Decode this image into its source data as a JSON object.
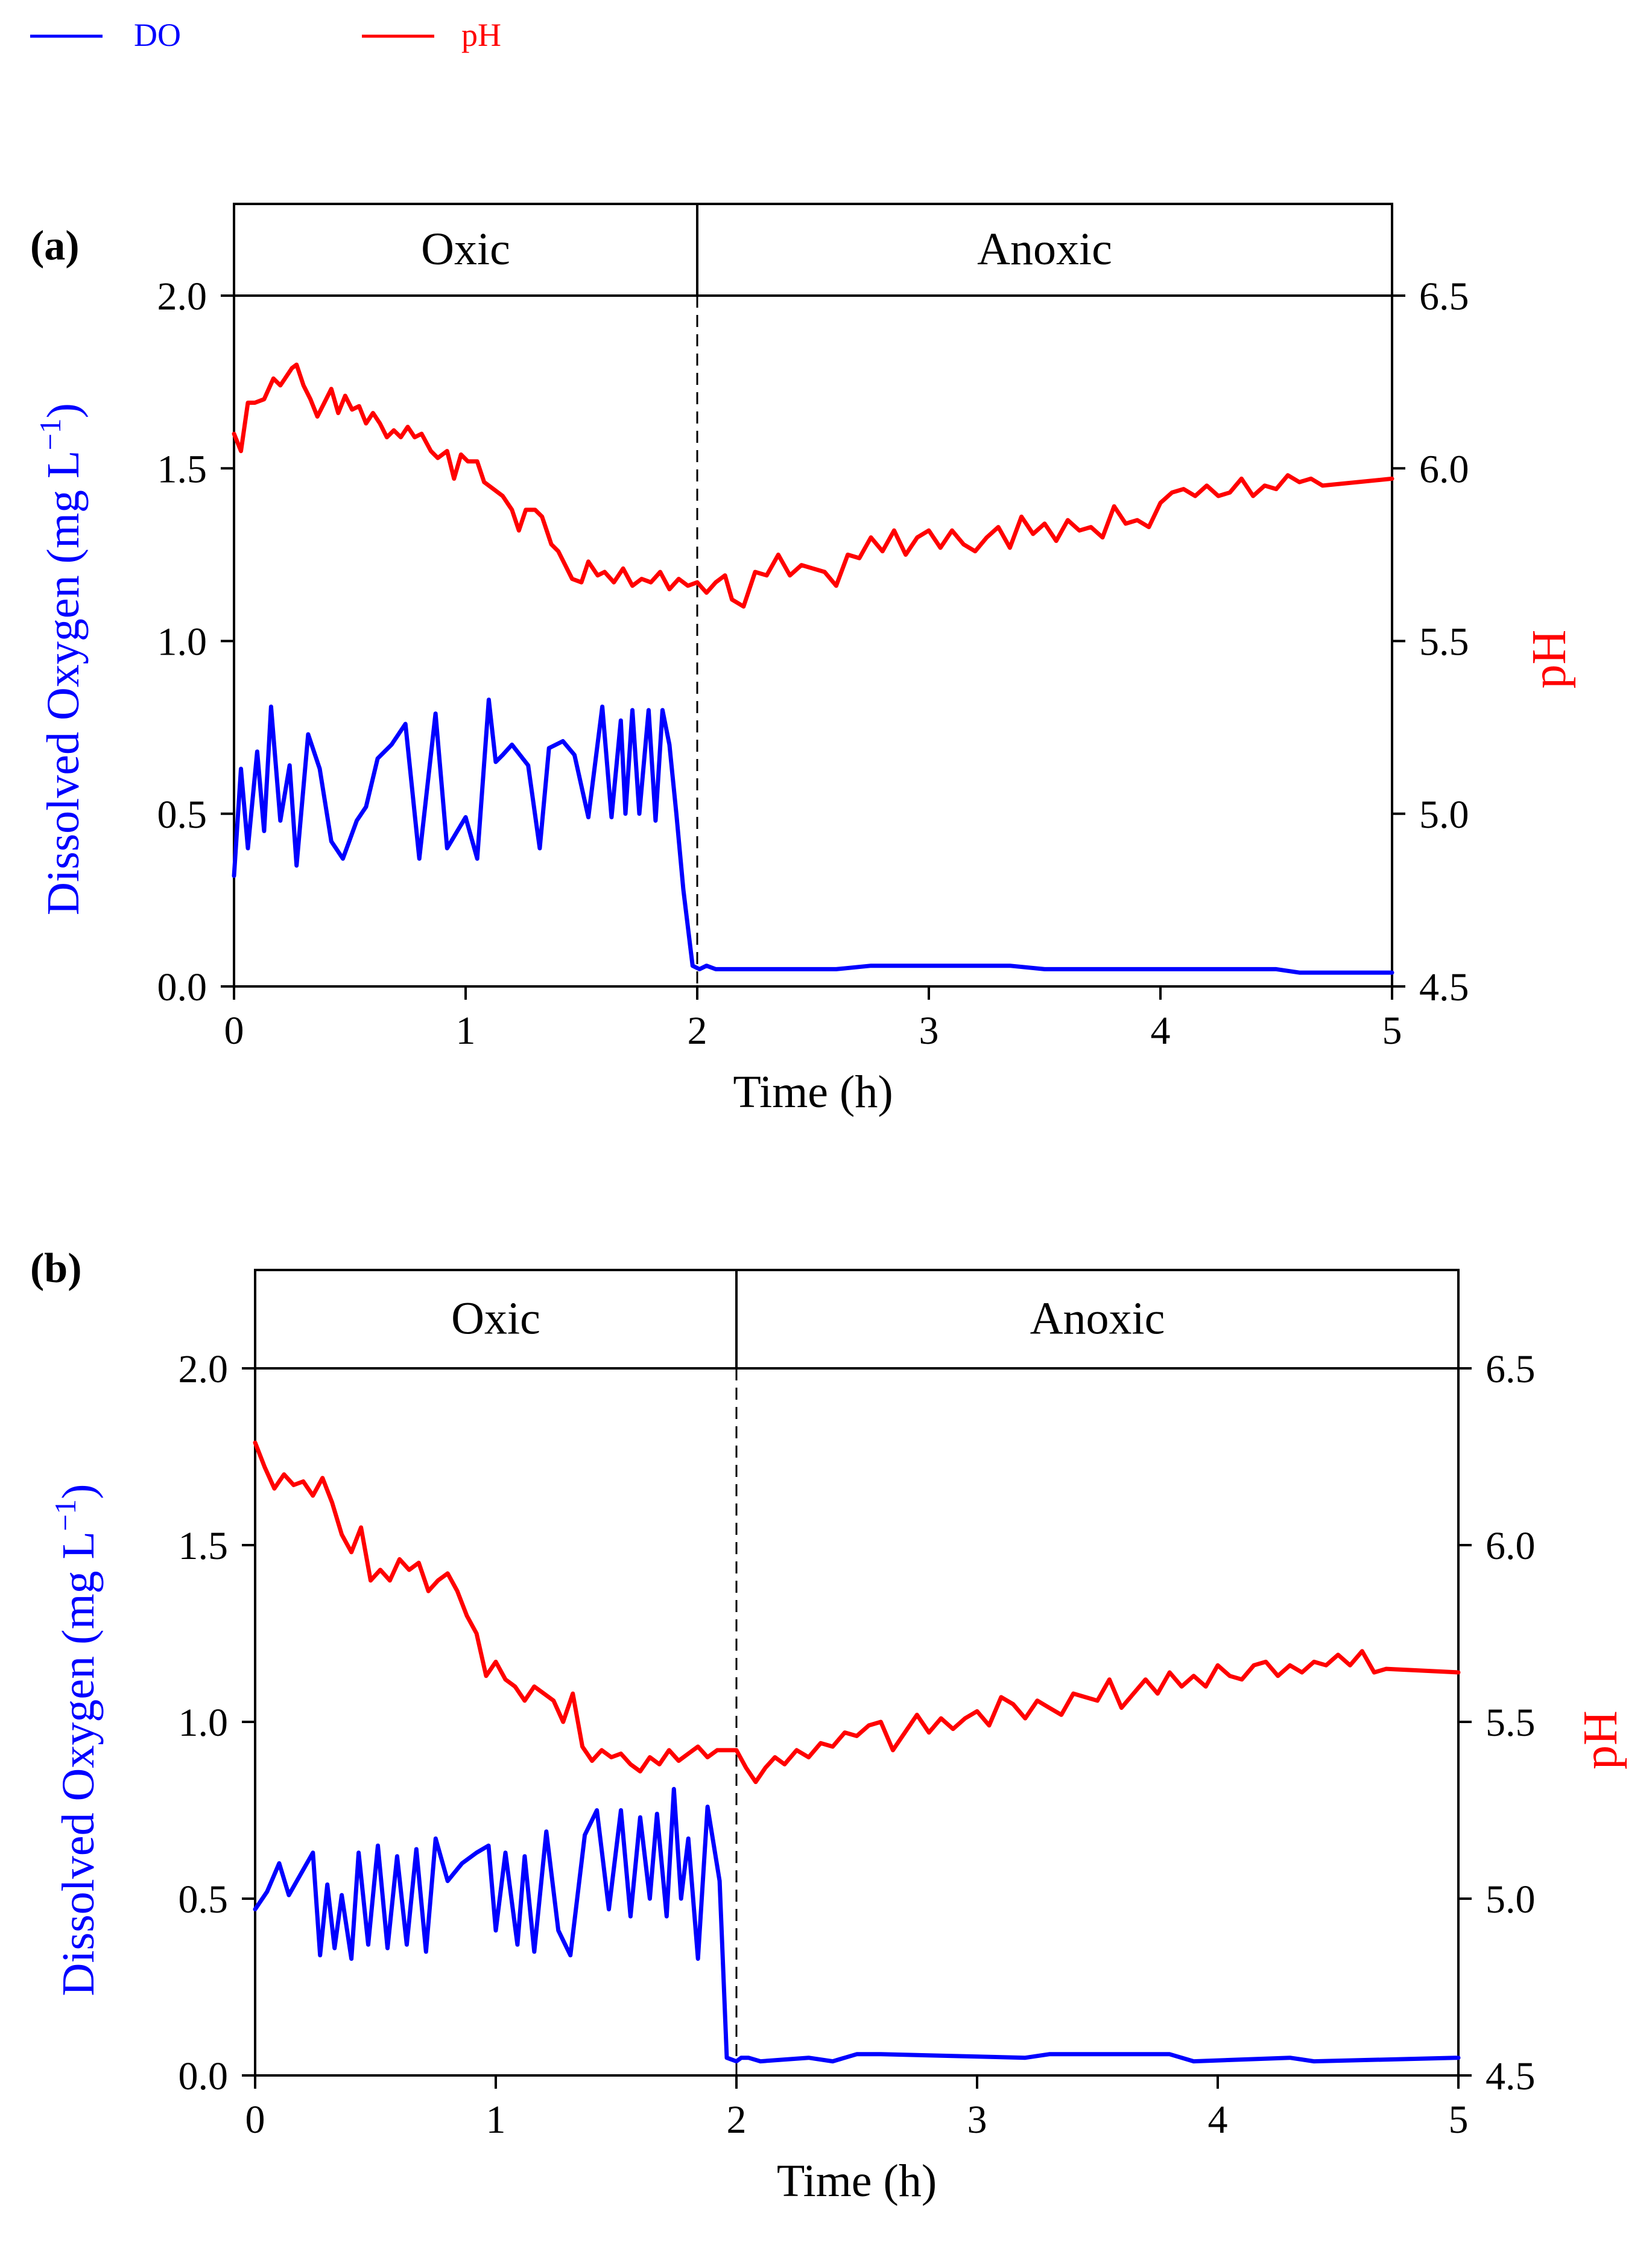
{
  "legend": {
    "items": [
      {
        "name": "DO",
        "color": "#0000ff"
      },
      {
        "name": "pH",
        "color": "#ff0000"
      }
    ]
  },
  "colors": {
    "do": "#0000ff",
    "ph": "#ff0000",
    "axis": "#000000"
  },
  "chart_data": [
    {
      "type": "line",
      "panel_label": "(a)",
      "phase_labels": [
        "Oxic",
        "Anoxic"
      ],
      "phase_boundary": 2,
      "xlabel": "Time (h)",
      "ylabel": "Dissolved Oxygen (mg L",
      "ylabel_sup": "−1",
      "ylabel_close": ")",
      "y2label": "pH",
      "xlim": [
        0,
        5
      ],
      "ylim": [
        0,
        2
      ],
      "y2lim": [
        4.5,
        6.5
      ],
      "xticks": [
        "0",
        "1",
        "2",
        "3",
        "4",
        "5"
      ],
      "yticks": [
        "0.0",
        "0.5",
        "1.0",
        "1.5",
        "2.0"
      ],
      "y2ticks": [
        "4.5",
        "5.0",
        "5.5",
        "6.0",
        "6.5"
      ],
      "series": [
        {
          "name": "DO",
          "axis": "left",
          "x": [
            0,
            0.03,
            0.06,
            0.1,
            0.13,
            0.16,
            0.2,
            0.24,
            0.27,
            0.32,
            0.37,
            0.42,
            0.47,
            0.53,
            0.57,
            0.62,
            0.68,
            0.74,
            0.8,
            0.83,
            0.87,
            0.92,
            1.0,
            1.05,
            1.1,
            1.13,
            1.16,
            1.2,
            1.27,
            1.32,
            1.36,
            1.42,
            1.47,
            1.53,
            1.59,
            1.63,
            1.67,
            1.69,
            1.72,
            1.75,
            1.79,
            1.82,
            1.85,
            1.88,
            1.91,
            1.94,
            1.98,
            2.01,
            2.04,
            2.08,
            2.15,
            2.6,
            2.75,
            3.35,
            3.5,
            4.5,
            4.6,
            5.0
          ],
          "values": [
            0.32,
            0.63,
            0.4,
            0.68,
            0.45,
            0.81,
            0.48,
            0.64,
            0.35,
            0.73,
            0.63,
            0.42,
            0.37,
            0.48,
            0.52,
            0.66,
            0.7,
            0.76,
            0.37,
            0.55,
            0.79,
            0.4,
            0.49,
            0.37,
            0.83,
            0.65,
            0.67,
            0.7,
            0.64,
            0.4,
            0.69,
            0.71,
            0.67,
            0.49,
            0.81,
            0.49,
            0.77,
            0.5,
            0.8,
            0.5,
            0.8,
            0.48,
            0.8,
            0.7,
            0.5,
            0.28,
            0.06,
            0.05,
            0.06,
            0.05,
            0.05,
            0.05,
            0.06,
            0.06,
            0.05,
            0.05,
            0.04,
            0.04
          ]
        },
        {
          "name": "pH",
          "axis": "right",
          "x": [
            0,
            0.03,
            0.06,
            0.09,
            0.13,
            0.17,
            0.2,
            0.22,
            0.25,
            0.27,
            0.3,
            0.33,
            0.36,
            0.39,
            0.42,
            0.45,
            0.48,
            0.51,
            0.54,
            0.57,
            0.6,
            0.63,
            0.66,
            0.69,
            0.72,
            0.75,
            0.78,
            0.81,
            0.85,
            0.88,
            0.92,
            0.95,
            0.98,
            1.01,
            1.05,
            1.08,
            1.12,
            1.16,
            1.2,
            1.23,
            1.26,
            1.3,
            1.33,
            1.37,
            1.4,
            1.43,
            1.46,
            1.5,
            1.53,
            1.57,
            1.6,
            1.64,
            1.68,
            1.72,
            1.76,
            1.8,
            1.84,
            1.88,
            1.92,
            1.96,
            2.0,
            2.04,
            2.08,
            2.12,
            2.15,
            2.2,
            2.25,
            2.3,
            2.35,
            2.4,
            2.45,
            2.5,
            2.55,
            2.6,
            2.65,
            2.7,
            2.75,
            2.8,
            2.85,
            2.9,
            2.95,
            3.0,
            3.05,
            3.1,
            3.15,
            3.2,
            3.25,
            3.3,
            3.35,
            3.4,
            3.45,
            3.5,
            3.55,
            3.6,
            3.65,
            3.7,
            3.75,
            3.8,
            3.85,
            3.9,
            3.95,
            4.0,
            4.05,
            4.1,
            4.15,
            4.2,
            4.25,
            4.3,
            4.35,
            4.4,
            4.45,
            4.5,
            4.55,
            4.6,
            4.65,
            4.7,
            5.0
          ],
          "values": [
            6.1,
            6.05,
            6.19,
            6.19,
            6.2,
            6.26,
            6.24,
            6.26,
            6.29,
            6.3,
            6.24,
            6.2,
            6.15,
            6.19,
            6.23,
            6.16,
            6.21,
            6.17,
            6.18,
            6.13,
            6.16,
            6.13,
            6.09,
            6.11,
            6.09,
            6.12,
            6.09,
            6.1,
            6.05,
            6.03,
            6.05,
            5.97,
            6.04,
            6.02,
            6.02,
            5.96,
            5.94,
            5.92,
            5.88,
            5.82,
            5.88,
            5.88,
            5.86,
            5.78,
            5.76,
            5.72,
            5.68,
            5.67,
            5.73,
            5.69,
            5.7,
            5.67,
            5.71,
            5.66,
            5.68,
            5.67,
            5.7,
            5.65,
            5.68,
            5.66,
            5.67,
            5.64,
            5.67,
            5.69,
            5.62,
            5.6,
            5.7,
            5.69,
            5.75,
            5.69,
            5.72,
            5.71,
            5.7,
            5.66,
            5.75,
            5.74,
            5.8,
            5.76,
            5.82,
            5.75,
            5.8,
            5.82,
            5.77,
            5.82,
            5.78,
            5.76,
            5.8,
            5.83,
            5.77,
            5.86,
            5.81,
            5.84,
            5.79,
            5.85,
            5.82,
            5.83,
            5.8,
            5.89,
            5.84,
            5.85,
            5.83,
            5.9,
            5.93,
            5.94,
            5.92,
            5.95,
            5.92,
            5.93,
            5.97,
            5.92,
            5.95,
            5.94,
            5.98,
            5.96,
            5.97,
            5.95,
            5.97
          ]
        }
      ]
    },
    {
      "type": "line",
      "panel_label": "(b)",
      "phase_labels": [
        "Oxic",
        "Anoxic"
      ],
      "phase_boundary": 2,
      "xlabel": "Time (h)",
      "ylabel": "Dissolved Oxygen (mg L",
      "ylabel_sup": "−1",
      "ylabel_close": ")",
      "y2label": "pH",
      "xlim": [
        0,
        5
      ],
      "ylim": [
        0,
        2
      ],
      "y2lim": [
        4.5,
        6.5
      ],
      "xticks": [
        "0",
        "1",
        "2",
        "3",
        "4",
        "5"
      ],
      "yticks": [
        "0.0",
        "0.5",
        "1.0",
        "1.5",
        "2.0"
      ],
      "y2ticks": [
        "4.5",
        "5.0",
        "5.5",
        "6.0",
        "6.5"
      ],
      "series": [
        {
          "name": "DO",
          "axis": "left",
          "x": [
            0,
            0.05,
            0.1,
            0.14,
            0.19,
            0.24,
            0.27,
            0.3,
            0.33,
            0.36,
            0.4,
            0.43,
            0.47,
            0.51,
            0.55,
            0.59,
            0.63,
            0.67,
            0.71,
            0.75,
            0.8,
            0.86,
            0.92,
            0.97,
            1.0,
            1.04,
            1.09,
            1.12,
            1.16,
            1.21,
            1.26,
            1.31,
            1.37,
            1.42,
            1.47,
            1.52,
            1.56,
            1.6,
            1.64,
            1.67,
            1.71,
            1.74,
            1.77,
            1.8,
            1.84,
            1.88,
            1.93,
            1.96,
            2.0,
            2.02,
            2.05,
            2.1,
            2.3,
            2.4,
            2.5,
            2.6,
            3.2,
            3.3,
            3.8,
            3.9,
            4.3,
            4.4,
            5.0
          ],
          "values": [
            0.47,
            0.52,
            0.6,
            0.51,
            0.57,
            0.63,
            0.34,
            0.54,
            0.36,
            0.51,
            0.33,
            0.63,
            0.37,
            0.65,
            0.36,
            0.62,
            0.37,
            0.64,
            0.35,
            0.67,
            0.55,
            0.6,
            0.63,
            0.65,
            0.41,
            0.63,
            0.37,
            0.62,
            0.35,
            0.69,
            0.41,
            0.34,
            0.68,
            0.75,
            0.47,
            0.75,
            0.45,
            0.73,
            0.5,
            0.74,
            0.45,
            0.81,
            0.5,
            0.67,
            0.33,
            0.76,
            0.55,
            0.05,
            0.04,
            0.05,
            0.05,
            0.04,
            0.05,
            0.04,
            0.06,
            0.06,
            0.05,
            0.06,
            0.06,
            0.04,
            0.05,
            0.04,
            0.05
          ]
        },
        {
          "name": "pH",
          "axis": "right",
          "x": [
            0,
            0.04,
            0.08,
            0.12,
            0.16,
            0.2,
            0.24,
            0.28,
            0.32,
            0.36,
            0.4,
            0.44,
            0.48,
            0.52,
            0.56,
            0.6,
            0.64,
            0.68,
            0.72,
            0.76,
            0.8,
            0.84,
            0.88,
            0.92,
            0.96,
            1.0,
            1.04,
            1.08,
            1.12,
            1.16,
            1.2,
            1.24,
            1.28,
            1.32,
            1.36,
            1.4,
            1.44,
            1.48,
            1.52,
            1.56,
            1.6,
            1.64,
            1.68,
            1.72,
            1.76,
            1.8,
            1.84,
            1.88,
            1.92,
            1.96,
            2.0,
            2.04,
            2.08,
            2.12,
            2.16,
            2.2,
            2.25,
            2.3,
            2.35,
            2.4,
            2.45,
            2.5,
            2.55,
            2.6,
            2.65,
            2.7,
            2.75,
            2.8,
            2.85,
            2.9,
            2.95,
            3.0,
            3.05,
            3.1,
            3.15,
            3.2,
            3.25,
            3.3,
            3.35,
            3.4,
            3.45,
            3.5,
            3.55,
            3.6,
            3.65,
            3.7,
            3.75,
            3.8,
            3.85,
            3.9,
            3.95,
            4.0,
            4.05,
            4.1,
            4.15,
            4.2,
            4.25,
            4.3,
            4.35,
            4.4,
            4.45,
            4.5,
            4.55,
            4.6,
            4.65,
            4.7,
            5.0
          ],
          "values": [
            6.29,
            6.22,
            6.16,
            6.2,
            6.17,
            6.18,
            6.14,
            6.19,
            6.12,
            6.03,
            5.98,
            6.05,
            5.9,
            5.93,
            5.9,
            5.96,
            5.93,
            5.95,
            5.87,
            5.9,
            5.92,
            5.87,
            5.8,
            5.75,
            5.63,
            5.67,
            5.62,
            5.6,
            5.56,
            5.6,
            5.58,
            5.56,
            5.5,
            5.58,
            5.43,
            5.39,
            5.42,
            5.4,
            5.41,
            5.38,
            5.36,
            5.4,
            5.38,
            5.42,
            5.39,
            5.41,
            5.43,
            5.4,
            5.42,
            5.42,
            5.42,
            5.37,
            5.33,
            5.37,
            5.4,
            5.38,
            5.42,
            5.4,
            5.44,
            5.43,
            5.47,
            5.46,
            5.49,
            5.5,
            5.42,
            5.47,
            5.52,
            5.47,
            5.51,
            5.48,
            5.51,
            5.53,
            5.49,
            5.57,
            5.55,
            5.51,
            5.56,
            5.54,
            5.52,
            5.58,
            5.57,
            5.56,
            5.62,
            5.54,
            5.58,
            5.62,
            5.58,
            5.64,
            5.6,
            5.63,
            5.6,
            5.66,
            5.63,
            5.62,
            5.66,
            5.67,
            5.63,
            5.66,
            5.64,
            5.67,
            5.66,
            5.69,
            5.66,
            5.7,
            5.64,
            5.65,
            5.64
          ]
        }
      ]
    }
  ]
}
